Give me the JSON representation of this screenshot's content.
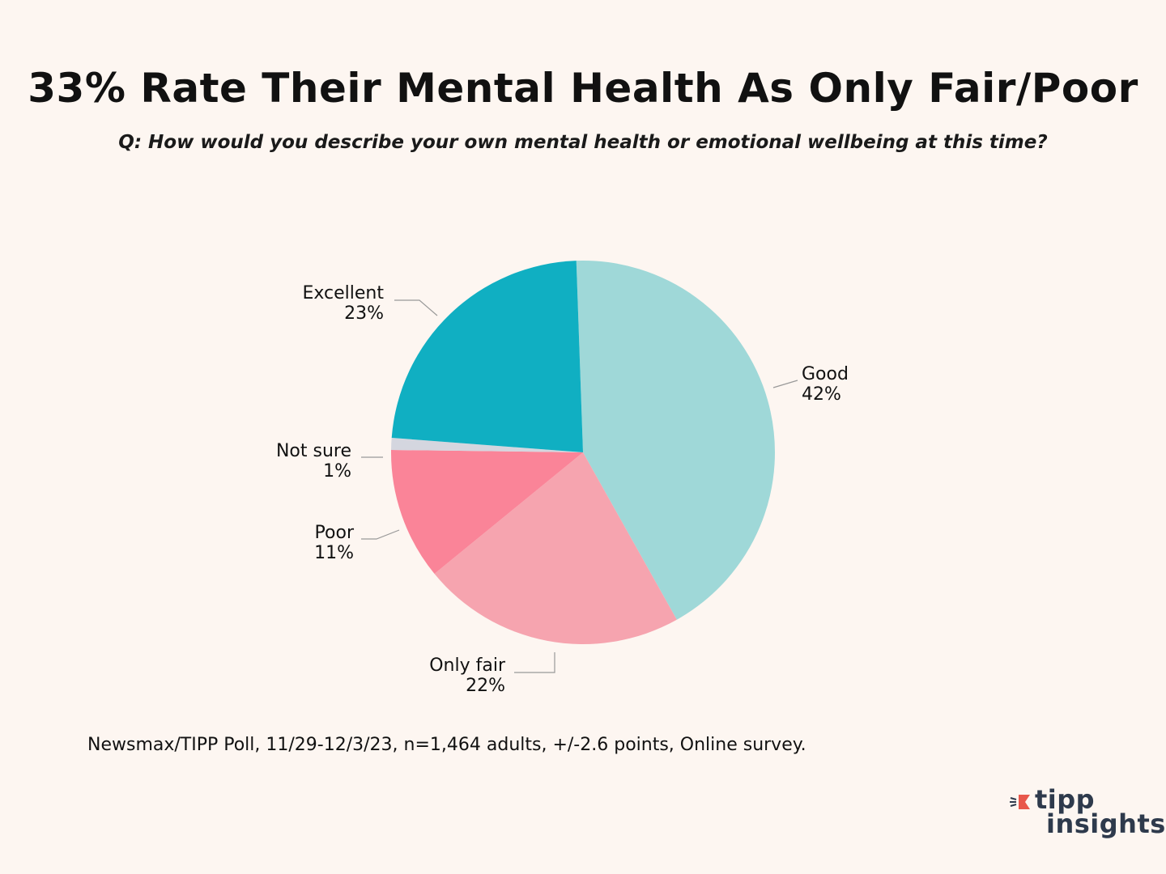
{
  "header": {
    "title": "33% Rate Their Mental Health As Only Fair/Poor",
    "subtitle": "Q: How would you describe your own mental health or emotional wellbeing at this time?"
  },
  "footer": {
    "source": "Newsmax/TIPP Poll, 11/29-12/3/23, n=1,464 adults, +/-2.6 points, Online survey."
  },
  "logo": {
    "line1": "tipp",
    "line2": "insights"
  },
  "chart_data": {
    "type": "pie",
    "title": "33% Rate Their Mental Health As Only Fair/Poor",
    "slices": [
      {
        "name": "Good",
        "value": 42,
        "label": "42%",
        "color": "#9fd8d8"
      },
      {
        "name": "Only fair",
        "value": 22,
        "label": "22%",
        "color": "#f6a4af"
      },
      {
        "name": "Poor",
        "value": 11,
        "label": "11%",
        "color": "#fa8498"
      },
      {
        "name": "Not sure",
        "value": 1,
        "label": "1%",
        "color": "#d4d6df"
      },
      {
        "name": "Excellent",
        "value": 23,
        "label": "23%",
        "color": "#10afc2"
      }
    ]
  },
  "colors": {
    "background": "#fdf6f1",
    "leader": "#999999",
    "logo_text": "#2e3a4c",
    "logo_mark": "#e8574b"
  }
}
